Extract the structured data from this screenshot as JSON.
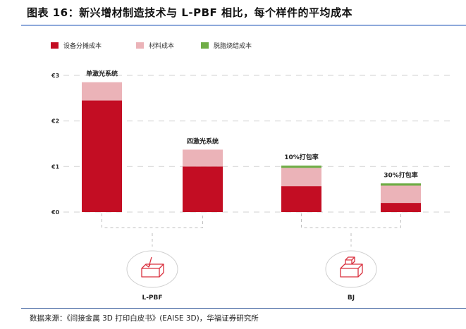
{
  "header": {
    "title": "图表 16：新兴增材制造技术与 L-PBF 相比，每个样件的平均成本"
  },
  "footer": {
    "source": "数据来源：《间接金属 3D 打印白皮书》(EAISE 3D)，华福证券研究所"
  },
  "colors": {
    "equipment": "#c30d23",
    "material": "#ebb3b8",
    "debinding": "#70ad47",
    "grid": "#d9d9d9",
    "icon": "#d9303e",
    "circle": "#cfcfcf"
  },
  "chart_data": {
    "type": "bar",
    "stacked": true,
    "title": "图表 16：新兴增材制造技术与 L-PBF 相比，每个样件的平均成本",
    "xlabel": "",
    "ylabel": "",
    "ylim": [
      0,
      3
    ],
    "y_ticks": [
      "€0",
      "€1",
      "€2",
      "€3"
    ],
    "y_tick_values": [
      0,
      1,
      2,
      3
    ],
    "grid": true,
    "legend_position": "top-left",
    "categories": [
      "单激光系统",
      "四激光系统",
      "10%打包率",
      "30%打包率"
    ],
    "groups": [
      {
        "label": "L-PBF",
        "icon": "laser-box-icon",
        "members": [
          0,
          1
        ]
      },
      {
        "label": "BJ",
        "icon": "binder-jet-box-icon",
        "members": [
          2,
          3
        ]
      }
    ],
    "series": [
      {
        "name": "设备分摊成本",
        "color_key": "equipment",
        "values": [
          2.45,
          1.0,
          0.57,
          0.2
        ]
      },
      {
        "name": "材料成本",
        "color_key": "material",
        "values": [
          0.4,
          0.37,
          0.4,
          0.38
        ]
      },
      {
        "name": "脱脂烧结成本",
        "color_key": "debinding",
        "values": [
          0,
          0,
          0.05,
          0.05
        ]
      }
    ]
  }
}
